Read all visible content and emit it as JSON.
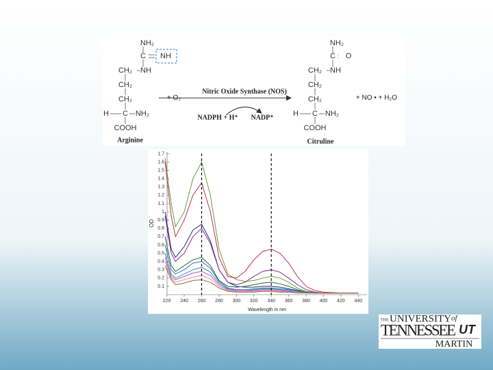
{
  "diagram": {
    "left_atoms": [
      "NH₂",
      "C",
      "NH",
      "CH₂",
      "NH",
      "CH₂",
      "CH₂",
      "H",
      "C",
      "NH₂",
      "COOH"
    ],
    "left_name": "Arginine",
    "reactant": "+ O₂",
    "enzyme": "Nitric Oxide Synthase (NOS)",
    "cofactor_in": "NADPH + H⁺",
    "cofactor_out": "NADP⁺",
    "right_atoms": [
      "NH₂",
      "C",
      "O",
      "CH₂",
      "NH",
      "CH₂",
      "CH₂",
      "H",
      "C",
      "NH₂",
      "COOH"
    ],
    "right_name": "Citruline",
    "products": "+ NO • + H₂O"
  },
  "chart_data": {
    "type": "line",
    "y_label": "OD",
    "x_label": "Wavelength in nm",
    "x": [
      218,
      225,
      230,
      240,
      250,
      260,
      270,
      280,
      290,
      300,
      310,
      320,
      330,
      340,
      350,
      360,
      370,
      380,
      390,
      400,
      420,
      440
    ],
    "series": [
      {
        "color": "#6a9a3a",
        "values": [
          1.65,
          1.1,
          0.82,
          1.0,
          1.4,
          1.6,
          1.2,
          0.55,
          0.25,
          0.18,
          0.16,
          0.17,
          0.2,
          0.22,
          0.2,
          0.15,
          0.08,
          0.04,
          0.03,
          0.02,
          0.02,
          0.02
        ]
      },
      {
        "color": "#c0304a",
        "values": [
          1.6,
          0.95,
          0.7,
          0.9,
          1.2,
          1.35,
          1.0,
          0.45,
          0.22,
          0.2,
          0.28,
          0.42,
          0.52,
          0.55,
          0.5,
          0.38,
          0.22,
          0.1,
          0.05,
          0.03,
          0.02,
          0.02
        ]
      },
      {
        "color": "#1c2a6e",
        "values": [
          1.0,
          0.55,
          0.45,
          0.58,
          0.78,
          0.85,
          0.65,
          0.3,
          0.15,
          0.1,
          0.09,
          0.09,
          0.1,
          0.1,
          0.09,
          0.07,
          0.05,
          0.03,
          0.02,
          0.02,
          0.02,
          0.02
        ]
      },
      {
        "color": "#7a2a9a",
        "values": [
          0.95,
          0.5,
          0.4,
          0.5,
          0.7,
          0.8,
          0.62,
          0.3,
          0.15,
          0.12,
          0.15,
          0.22,
          0.28,
          0.3,
          0.27,
          0.2,
          0.12,
          0.06,
          0.03,
          0.02,
          0.02,
          0.02
        ]
      },
      {
        "color": "#1e6a3a",
        "values": [
          0.7,
          0.35,
          0.28,
          0.35,
          0.42,
          0.45,
          0.35,
          0.17,
          0.1,
          0.09,
          0.1,
          0.12,
          0.14,
          0.15,
          0.13,
          0.1,
          0.06,
          0.03,
          0.02,
          0.02,
          0.02,
          0.02
        ]
      },
      {
        "color": "#3a6ac8",
        "values": [
          0.6,
          0.3,
          0.25,
          0.3,
          0.38,
          0.4,
          0.32,
          0.16,
          0.08,
          0.06,
          0.06,
          0.07,
          0.08,
          0.08,
          0.07,
          0.06,
          0.04,
          0.03,
          0.02,
          0.02,
          0.02,
          0.02
        ]
      },
      {
        "color": "#2a9a9a",
        "values": [
          0.5,
          0.25,
          0.2,
          0.25,
          0.3,
          0.33,
          0.27,
          0.14,
          0.07,
          0.05,
          0.05,
          0.06,
          0.07,
          0.07,
          0.06,
          0.05,
          0.04,
          0.02,
          0.02,
          0.02,
          0.02,
          0.02
        ]
      },
      {
        "color": "#c04ac0",
        "values": [
          0.45,
          0.22,
          0.18,
          0.22,
          0.26,
          0.28,
          0.23,
          0.12,
          0.06,
          0.05,
          0.05,
          0.05,
          0.06,
          0.06,
          0.05,
          0.04,
          0.03,
          0.02,
          0.02,
          0.02,
          0.02,
          0.02
        ]
      },
      {
        "color": "#e08aa0",
        "values": [
          0.4,
          0.2,
          0.15,
          0.18,
          0.21,
          0.23,
          0.19,
          0.1,
          0.05,
          0.04,
          0.04,
          0.04,
          0.05,
          0.05,
          0.04,
          0.03,
          0.03,
          0.02,
          0.02,
          0.02,
          0.02,
          0.02
        ]
      },
      {
        "color": "#8a6a3a",
        "values": [
          0.35,
          0.18,
          0.12,
          0.14,
          0.17,
          0.18,
          0.15,
          0.08,
          0.04,
          0.03,
          0.03,
          0.03,
          0.04,
          0.04,
          0.03,
          0.03,
          0.02,
          0.02,
          0.02,
          0.02,
          0.02,
          0.02
        ]
      }
    ],
    "xlim": [
      214,
      450
    ],
    "ylim": [
      0,
      1.72
    ],
    "xticks": [
      220,
      240,
      260,
      280,
      300,
      320,
      340,
      360,
      380,
      400,
      420,
      440
    ],
    "yticks": [
      0.1,
      0.2,
      0.3,
      0.4,
      0.5,
      0.6,
      0.7,
      0.8,
      0.9,
      1,
      1.1,
      1.2,
      1.3,
      1.4,
      1.5,
      1.6,
      1.7
    ],
    "vlines": [
      260,
      340
    ]
  },
  "logo": {
    "the": "THE",
    "university": "UNIVERSITY",
    "of": "of",
    "state": "TENNESSEE",
    "mark": "UT",
    "campus": "MARTIN"
  }
}
